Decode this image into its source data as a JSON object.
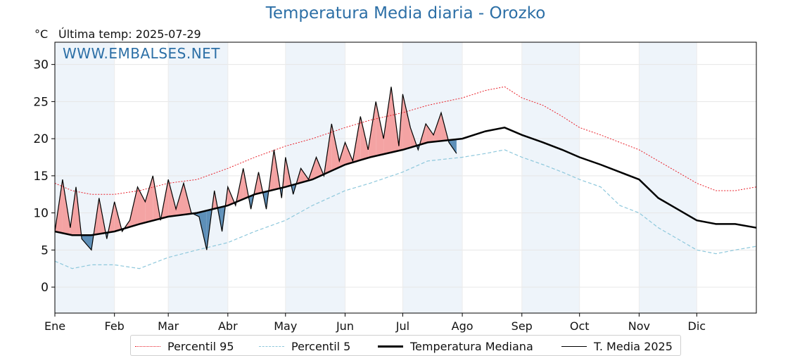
{
  "header": {
    "title": "Temperatura Media diaria - Orozko",
    "unit": "°C",
    "last_temp": "Última temp: 2025-07-29",
    "watermark": "WWW.EMBALSES.NET"
  },
  "legend": {
    "p95": "Percentil 95",
    "p5": "Percentil 5",
    "median": "Temperatura Mediana",
    "current": "T. Media 2025"
  },
  "colors": {
    "p95": "#e8202a",
    "p5": "#8ec8dc",
    "median": "#000000",
    "current": "#000000",
    "above_fill": "#f4a3a3",
    "below_fill": "#5d8fb8",
    "band_fill": "#eef4fa",
    "accent": "#2c6fa6"
  },
  "chart_data": {
    "type": "line",
    "xlabel": "",
    "ylabel": "",
    "ylim": [
      -3.5,
      33
    ],
    "yticks": [
      0,
      5,
      10,
      15,
      20,
      25,
      30
    ],
    "xlim": [
      1,
      366
    ],
    "xticks": [
      {
        "label": "Ene",
        "day": 1
      },
      {
        "label": "Feb",
        "day": 32
      },
      {
        "label": "Mar",
        "day": 60
      },
      {
        "label": "Abr",
        "day": 91
      },
      {
        "label": "May",
        "day": 121
      },
      {
        "label": "Jun",
        "day": 152
      },
      {
        "label": "Jul",
        "day": 182
      },
      {
        "label": "Ago",
        "day": 213
      },
      {
        "label": "Sep",
        "day": 244
      },
      {
        "label": "Oct",
        "day": 274
      },
      {
        "label": "Nov",
        "day": 305
      },
      {
        "label": "Dic",
        "day": 335
      }
    ],
    "grid": true,
    "alternate_month_shading": true,
    "series": [
      {
        "name": "Percentil 95",
        "style": "dotted",
        "x": [
          1,
          10,
          20,
          32,
          45,
          60,
          75,
          91,
          105,
          121,
          135,
          152,
          165,
          182,
          195,
          213,
          225,
          235,
          244,
          255,
          265,
          274,
          285,
          295,
          305,
          315,
          325,
          335,
          345,
          355,
          366
        ],
        "y": [
          14.0,
          13.0,
          12.5,
          12.5,
          13.0,
          14.0,
          14.5,
          16.0,
          17.5,
          19.0,
          20.0,
          21.5,
          22.5,
          23.5,
          24.5,
          25.5,
          26.5,
          27.0,
          25.5,
          24.5,
          23.0,
          21.5,
          20.5,
          19.5,
          18.5,
          17.0,
          15.5,
          14.0,
          13.0,
          13.0,
          13.5
        ]
      },
      {
        "name": "Percentil 5",
        "style": "dashed",
        "x": [
          1,
          10,
          20,
          32,
          45,
          60,
          75,
          91,
          105,
          121,
          135,
          152,
          165,
          182,
          195,
          213,
          225,
          235,
          244,
          255,
          265,
          274,
          285,
          295,
          305,
          315,
          325,
          335,
          345,
          355,
          366
        ],
        "y": [
          3.5,
          2.5,
          3.0,
          3.0,
          2.5,
          4.0,
          5.0,
          6.0,
          7.5,
          9.0,
          11.0,
          13.0,
          14.0,
          15.5,
          17.0,
          17.5,
          18.0,
          18.5,
          17.5,
          16.5,
          15.5,
          14.5,
          13.5,
          11.0,
          10.0,
          8.0,
          6.5,
          5.0,
          4.5,
          5.0,
          5.5
        ]
      },
      {
        "name": "Temperatura Mediana",
        "style": "solid-thick",
        "x": [
          1,
          10,
          20,
          32,
          45,
          60,
          75,
          91,
          105,
          121,
          135,
          152,
          165,
          182,
          195,
          213,
          225,
          235,
          244,
          255,
          265,
          274,
          285,
          295,
          305,
          315,
          325,
          335,
          345,
          355,
          366
        ],
        "y": [
          7.5,
          7.0,
          7.0,
          7.5,
          8.5,
          9.5,
          10.0,
          11.0,
          12.5,
          13.5,
          14.5,
          16.5,
          17.5,
          18.5,
          19.5,
          20.0,
          21.0,
          21.5,
          20.5,
          19.5,
          18.5,
          17.5,
          16.5,
          15.5,
          14.5,
          12.0,
          10.5,
          9.0,
          8.5,
          8.5,
          8.0
        ]
      },
      {
        "name": "T. Media 2025",
        "style": "solid-thin",
        "x": [
          1,
          5,
          9,
          12,
          15,
          20,
          24,
          28,
          32,
          36,
          40,
          44,
          48,
          52,
          56,
          60,
          64,
          68,
          72,
          76,
          80,
          84,
          88,
          91,
          95,
          99,
          103,
          107,
          111,
          115,
          119,
          121,
          125,
          129,
          133,
          137,
          141,
          145,
          149,
          152,
          156,
          160,
          164,
          168,
          172,
          176,
          180,
          182,
          186,
          190,
          194,
          198,
          202,
          206,
          210
        ],
        "y": [
          7.5,
          14.5,
          8.0,
          13.5,
          6.5,
          5.0,
          12.0,
          6.5,
          11.5,
          7.5,
          9.0,
          13.5,
          11.5,
          15.0,
          9.0,
          14.5,
          10.5,
          14.0,
          10.0,
          9.5,
          5.0,
          13.0,
          7.5,
          13.5,
          11.0,
          16.0,
          10.5,
          15.5,
          10.5,
          18.5,
          12.0,
          17.5,
          12.5,
          16.0,
          14.5,
          17.5,
          15.0,
          22.0,
          17.0,
          19.5,
          17.0,
          23.0,
          18.5,
          25.0,
          20.0,
          27.0,
          19.0,
          26.0,
          21.5,
          18.5,
          22.0,
          20.5,
          23.5,
          19.5,
          18.0
        ]
      }
    ]
  }
}
